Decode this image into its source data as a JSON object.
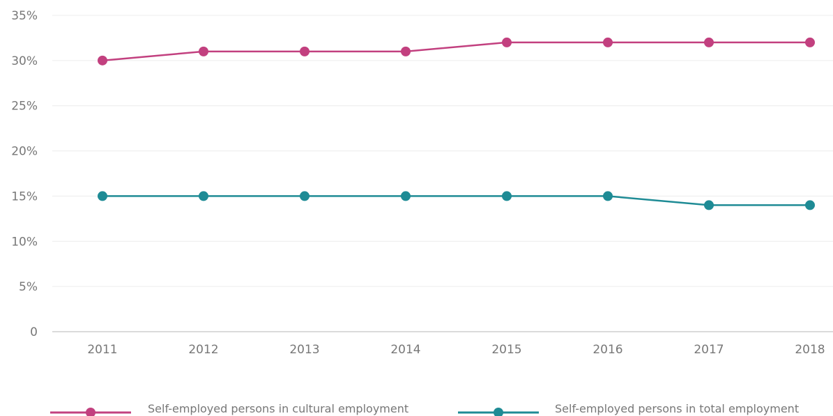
{
  "chart_data": {
    "type": "line",
    "categories": [
      "2011",
      "2012",
      "2013",
      "2014",
      "2015",
      "2016",
      "2017",
      "2018"
    ],
    "y_ticks": [
      "0",
      "5%",
      "10%",
      "15%",
      "20%",
      "25%",
      "30%",
      "35%"
    ],
    "ylim": [
      0,
      35
    ],
    "grid": true,
    "legend_position": "bottom",
    "series": [
      {
        "name": "Self-employed persons in cultural employment",
        "color": "#c2407f",
        "values": [
          30,
          31,
          31,
          31,
          32,
          32,
          32,
          32
        ]
      },
      {
        "name": "Self-employed persons in total employment",
        "color": "#1e8b95",
        "values": [
          15,
          15,
          15,
          15,
          15,
          15,
          14,
          14
        ]
      }
    ]
  }
}
